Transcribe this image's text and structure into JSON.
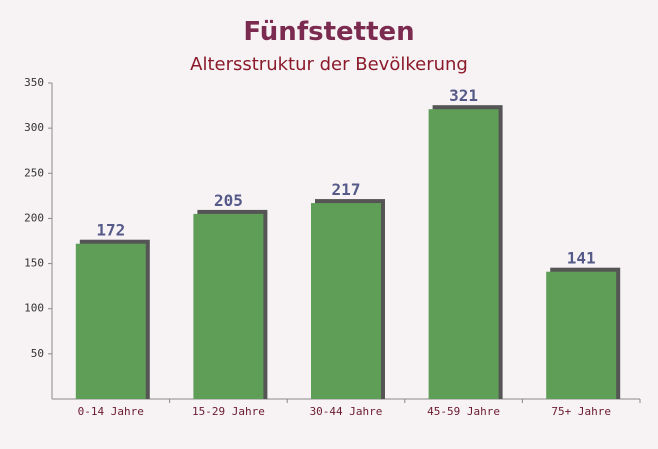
{
  "chart_data": {
    "type": "bar",
    "title": "Fünfstetten",
    "subtitle": "Altersstruktur der Bevölkerung",
    "categories": [
      "0-14 Jahre",
      "15-29 Jahre",
      "30-44 Jahre",
      "45-59 Jahre",
      "75+ Jahre"
    ],
    "values": [
      172,
      205,
      217,
      321,
      141
    ],
    "color": "#5e9e56",
    "ylim": [
      0,
      350
    ],
    "yticks": [
      50,
      100,
      150,
      200,
      250,
      300,
      350
    ],
    "grid": false
  }
}
